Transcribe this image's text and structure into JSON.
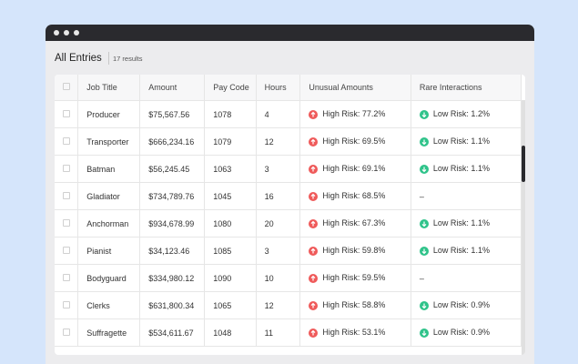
{
  "header": {
    "title": "All Entries",
    "count": "17 results"
  },
  "table": {
    "columns": [
      "Job Title",
      "Amount",
      "Pay Code",
      "Hours",
      "Unusual Amounts",
      "Rare Interactions"
    ],
    "rows": [
      [
        "Producer",
        "$75,567.56",
        1078,
        4,
        {
          "icon": "up",
          "label": "High Risk: 77.2%"
        },
        {
          "icon": "down",
          "label": "Low Risk: 1.2%"
        }
      ],
      [
        "Transporter",
        "$666,234.16",
        1079,
        12,
        {
          "icon": "up",
          "label": "High Risk: 69.5%"
        },
        {
          "icon": "down",
          "label": "Low Risk: 1.1%"
        }
      ],
      [
        "Batman",
        "$56,245.45",
        1063,
        3,
        {
          "icon": "up",
          "label": "High Risk: 69.1%"
        },
        {
          "icon": "down",
          "label": "Low Risk: 1.1%"
        }
      ],
      [
        "Gladiator",
        "$734,789.76",
        1045,
        16,
        {
          "icon": "up",
          "label": "High Risk: 68.5%"
        },
        {
          "label": "–"
        }
      ],
      [
        "Anchorman",
        "$934,678.99",
        1080,
        20,
        {
          "icon": "up",
          "label": "High Risk: 67.3%"
        },
        {
          "icon": "down",
          "label": "Low Risk: 1.1%"
        }
      ],
      [
        "Pianist",
        "$34,123.46",
        1085,
        3,
        {
          "icon": "up",
          "label": "High Risk: 59.8%"
        },
        {
          "icon": "down",
          "label": "Low Risk: 1.1%"
        }
      ],
      [
        "Bodyguard",
        "$334,980.12",
        1090,
        10,
        {
          "icon": "up",
          "label": "High Risk: 59.5%"
        },
        {
          "label": "–"
        }
      ],
      [
        "Clerks",
        "$631,800.34",
        1065,
        12,
        {
          "icon": "up",
          "label": "High Risk: 58.8%"
        },
        {
          "icon": "down",
          "label": "Low Risk: 0.9%"
        }
      ],
      [
        "Suffragette",
        "$534,611.67",
        1048,
        11,
        {
          "icon": "up",
          "label": "High Risk: 53.1%"
        },
        {
          "icon": "down",
          "label": "Low Risk: 0.9%"
        }
      ]
    ]
  }
}
